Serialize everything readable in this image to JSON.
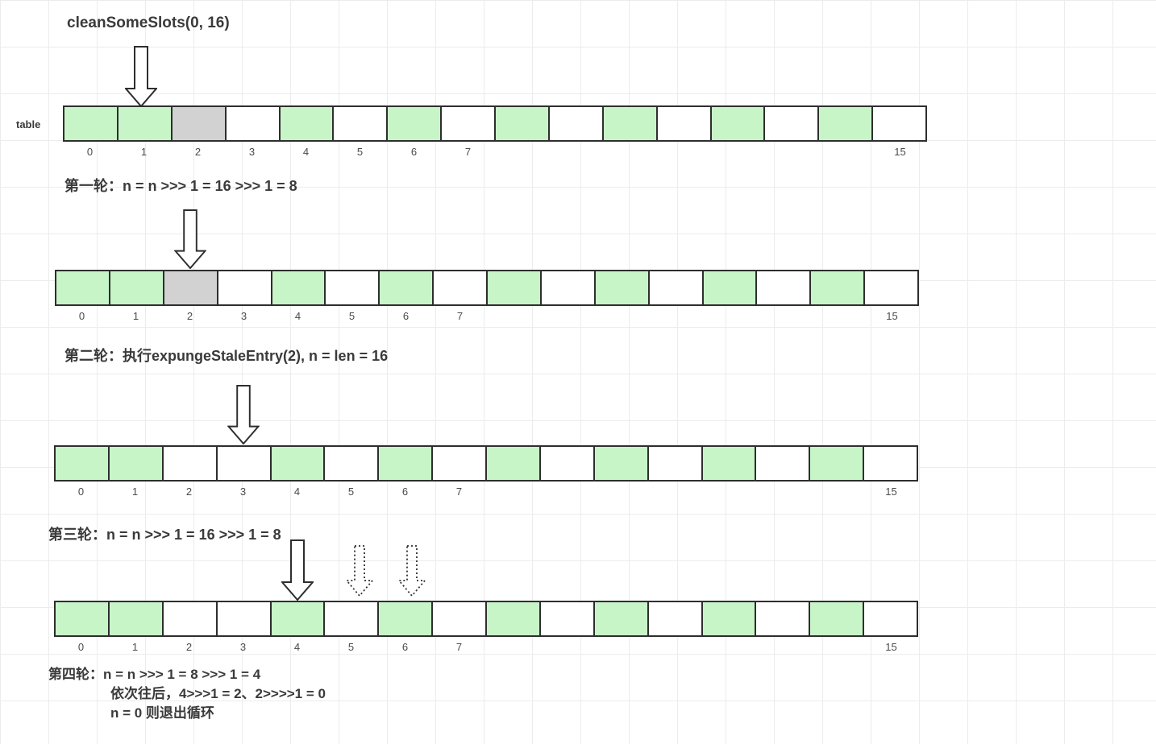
{
  "title": "cleanSomeSlots(0, 16)",
  "table_label": "table",
  "colors": {
    "cell_green": "#c8f5c8",
    "cell_gray": "#d2d2d2",
    "cell_white": "#ffffff",
    "cell_border": "#2e2e2e",
    "text": "#3a3a3a",
    "grid_line": "#ececec"
  },
  "steps": {
    "round1": "第一轮：n = n >>> 1 = 16 >>> 1 = 8",
    "round2": "第二轮：执行expungeStaleEntry(2), n = len = 16",
    "round3": "第三轮：n = n >>> 1 = 16 >>> 1 = 8",
    "round4_line1": "第四轮：n = n >>> 1 = 8 >>> 1 = 4",
    "round4_line2": "依次往后，4>>>1 = 2、2>>>>1 = 0",
    "round4_line3": "n = 0 则退出循环"
  },
  "arrays": [
    {
      "name": "initial-table",
      "cells": [
        "green",
        "green",
        "gray",
        "white",
        "green",
        "white",
        "green",
        "white",
        "green",
        "white",
        "green",
        "white",
        "green",
        "white",
        "green",
        "white"
      ],
      "labels": [
        "0",
        "1",
        "2",
        "3",
        "4",
        "5",
        "6",
        "7",
        "",
        "",
        "",
        "",
        "",
        "",
        "",
        "15"
      ]
    },
    {
      "name": "round1-table",
      "cells": [
        "green",
        "green",
        "gray",
        "white",
        "green",
        "white",
        "green",
        "white",
        "green",
        "white",
        "green",
        "white",
        "green",
        "white",
        "green",
        "white"
      ],
      "labels": [
        "0",
        "1",
        "2",
        "3",
        "4",
        "5",
        "6",
        "7",
        "",
        "",
        "",
        "",
        "",
        "",
        "",
        "15"
      ]
    },
    {
      "name": "round2-table",
      "cells": [
        "green",
        "green",
        "white",
        "white",
        "green",
        "white",
        "green",
        "white",
        "green",
        "white",
        "green",
        "white",
        "green",
        "white",
        "green",
        "white"
      ],
      "labels": [
        "0",
        "1",
        "2",
        "3",
        "4",
        "5",
        "6",
        "7",
        "",
        "",
        "",
        "",
        "",
        "",
        "",
        "15"
      ]
    },
    {
      "name": "round3-table",
      "cells": [
        "green",
        "green",
        "white",
        "white",
        "green",
        "white",
        "green",
        "white",
        "green",
        "white",
        "green",
        "white",
        "green",
        "white",
        "green",
        "white"
      ],
      "labels": [
        "0",
        "1",
        "2",
        "3",
        "4",
        "5",
        "6",
        "7",
        "",
        "",
        "",
        "",
        "",
        "",
        "",
        "15"
      ]
    }
  ]
}
